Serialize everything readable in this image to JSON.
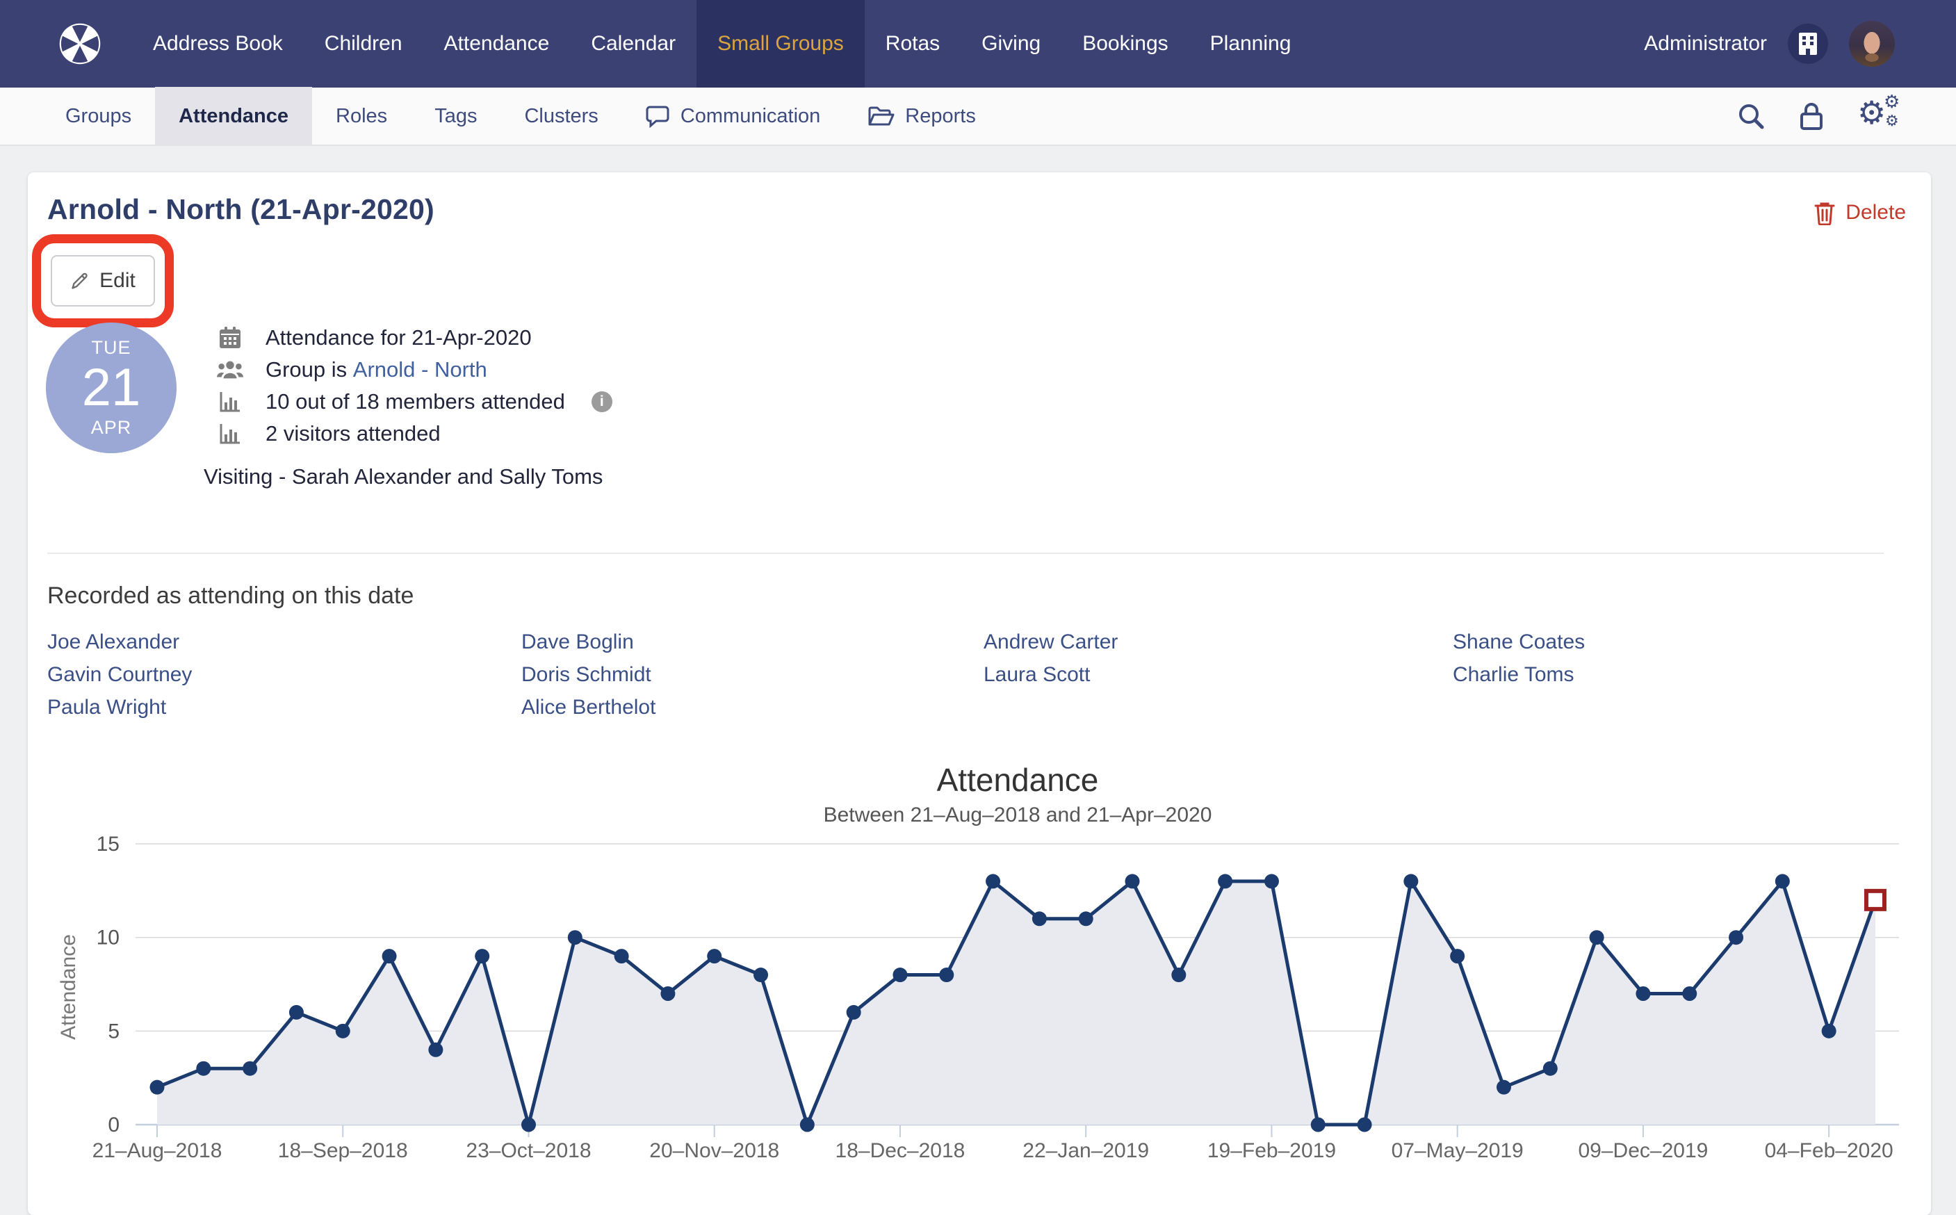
{
  "topnav": {
    "items": [
      {
        "label": "Address Book",
        "active": false
      },
      {
        "label": "Children",
        "active": false
      },
      {
        "label": "Attendance",
        "active": false
      },
      {
        "label": "Calendar",
        "active": false
      },
      {
        "label": "Small Groups",
        "active": true
      },
      {
        "label": "Rotas",
        "active": false
      },
      {
        "label": "Giving",
        "active": false
      },
      {
        "label": "Bookings",
        "active": false
      },
      {
        "label": "Planning",
        "active": false
      }
    ],
    "user_label": "Administrator"
  },
  "subnav": {
    "items": [
      {
        "label": "Groups",
        "active": false
      },
      {
        "label": "Attendance",
        "active": true
      },
      {
        "label": "Roles",
        "active": false
      },
      {
        "label": "Tags",
        "active": false
      },
      {
        "label": "Clusters",
        "active": false
      },
      {
        "label": "Communication",
        "active": false,
        "icon": "speech-bubble"
      },
      {
        "label": "Reports",
        "active": false,
        "icon": "open-folder"
      }
    ]
  },
  "page": {
    "title": "Arnold - North (21-Apr-2020)",
    "delete_label": "Delete",
    "edit_label": "Edit",
    "date_badge": {
      "day": "TUE",
      "number": "21",
      "month": "APR"
    },
    "details": {
      "row1": "Attendance for 21-Apr-2020",
      "row2_prefix": "Group is",
      "row2_link": "Arnold - North",
      "row3": "10 out of 18 members attended",
      "row4": "2 visitors attended"
    },
    "visiting_note": "Visiting - Sarah Alexander and Sally Toms",
    "attendees_heading": "Recorded as attending on this date",
    "attendees": {
      "columns": [
        [
          "Joe Alexander",
          "Gavin Courtney",
          "Paula Wright"
        ],
        [
          "Dave Boglin",
          "Doris Schmidt",
          "Alice Berthelot"
        ],
        [
          "Andrew Carter",
          "Laura Scott"
        ],
        [
          "Shane Coates",
          "Charlie Toms"
        ]
      ]
    }
  },
  "chart_data": {
    "type": "area",
    "title": "Attendance",
    "subtitle": "Between 21–Aug–2018 and 21–Apr–2020",
    "ylabel": "Attendance",
    "xlabel": "",
    "ylim": [
      0,
      15
    ],
    "yticks": [
      0,
      5,
      10,
      15
    ],
    "grid": true,
    "legend": false,
    "values": [
      2,
      3,
      3,
      6,
      5,
      9,
      4,
      9,
      0,
      10,
      9,
      7,
      9,
      8,
      0,
      6,
      8,
      8,
      13,
      11,
      11,
      13,
      8,
      13,
      13,
      0,
      0,
      13,
      9,
      2,
      3,
      10,
      7,
      7,
      10,
      13,
      5,
      12
    ],
    "x_tick_indices": [
      0,
      4,
      8,
      12,
      16,
      20,
      24,
      28,
      32,
      36
    ],
    "x_tick_labels": [
      "21–Aug–2018",
      "18–Sep–2018",
      "23–Oct–2018",
      "20–Nov–2018",
      "18–Dec–2018",
      "22–Jan–2019",
      "19–Feb–2019",
      "07–May–2019",
      "09–Dec–2019",
      "04–Feb–2020"
    ],
    "last_point_label": "21-Apr-2020",
    "last_point_marker": "open-square-red",
    "colors": {
      "line": "#1b3a6d",
      "fill": "#e8eaf0",
      "marker_square": "#9e2121",
      "grid": "#d8d8d8",
      "axis": "#c3cfdd",
      "text": "#666666"
    }
  },
  "colors": {
    "nav_bg": "#3b4273",
    "nav_active_bg": "#2b3261",
    "nav_active_text": "#dca43f",
    "link_blue": "#41609f",
    "names_navy": "#3a4f86",
    "delete_red": "#c0392b",
    "annotation_red": "#ec3a27",
    "date_badge": "#9ba7d5"
  },
  "icons": {
    "logo": "circle-cross-logo",
    "org": "building",
    "search": "magnifier",
    "lock": "padlock",
    "settings": "gears",
    "communication": "speech-bubble",
    "reports": "open-folder",
    "delete": "trash-can",
    "edit": "pencil",
    "detail1": "calendar",
    "detail2": "people-group",
    "detail3": "bar-chart",
    "detail4": "bar-chart",
    "info": "info-circle"
  }
}
